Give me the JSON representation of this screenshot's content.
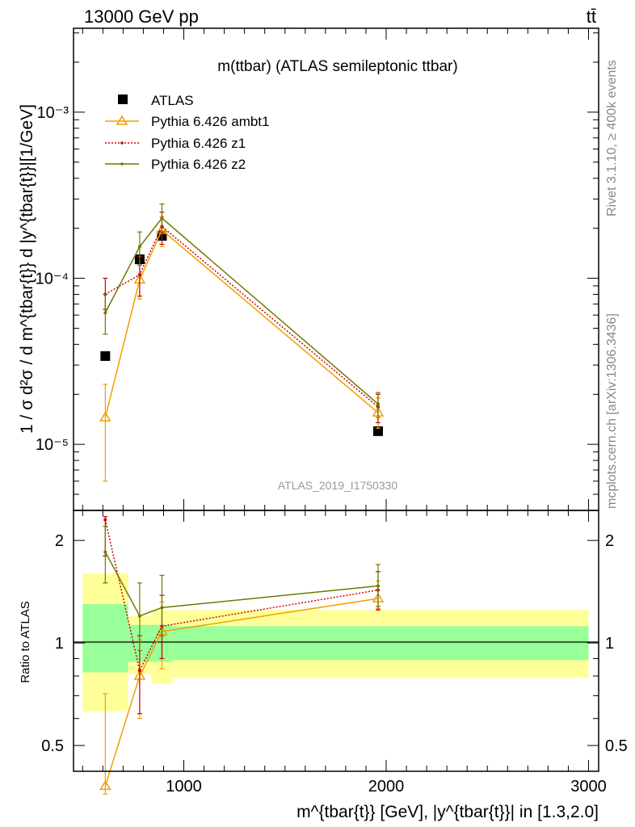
{
  "header": {
    "left": "13000 GeV pp",
    "right": "tt̄"
  },
  "side_text": {
    "rivet": "Rivet 3.1.10, ≥ 400k events",
    "mcplots": "mcplots.cern.ch [arXiv:1306.3436]"
  },
  "watermark": "ATLAS_2019_I1750330",
  "chart_data": [
    {
      "panel": "main",
      "type": "line",
      "title": "m(ttbar) (ATLAS semileptonic ttbar)",
      "xlabel": "m^{tbar{t}} [GeV], |y^{tbar{t}}| in [1.3,2.0]",
      "ylabel": "1 / σ d²σ / d m^{tbar{t}} d |y^{tbar{t}}|[1/GeV]",
      "xlim": [
        455,
        3050
      ],
      "ylim": [
        4e-06,
        0.0032
      ],
      "yscale": "log",
      "yticks": [
        {
          "v": 1e-05,
          "label": "10⁻⁵"
        },
        {
          "v": 0.0001,
          "label": "10⁻⁴"
        },
        {
          "v": 0.001,
          "label": "10⁻³"
        }
      ],
      "legend": [
        "ATLAS",
        "Pythia 6.426 ambt1",
        "Pythia 6.426 z1",
        "Pythia 6.426 z2"
      ],
      "series": [
        {
          "name": "ATLAS",
          "x": [
            612,
            782,
            892,
            1960
          ],
          "values": [
            3.4e-05,
            0.00013,
            0.00018,
            1.2e-05
          ]
        },
        {
          "name": "Pythia 6.426 ambt1",
          "x": [
            612,
            782,
            892,
            1960
          ],
          "values": [
            1.45e-05,
            9.8e-05,
            0.000195,
            1.55e-05
          ],
          "err_lo": [
            6e-06,
            7.5e-05,
            0.000155,
            1.25e-05
          ],
          "err_hi": [
            2.3e-05,
            0.00012,
            0.000235,
            1.9e-05
          ]
        },
        {
          "name": "Pythia 6.426 z1",
          "x": [
            612,
            782,
            892,
            1960
          ],
          "values": [
            8e-05,
            0.000105,
            0.000205,
            1.68e-05
          ],
          "err_lo": [
            6.5e-05,
            7.8e-05,
            0.00016,
            1.35e-05
          ],
          "err_hi": [
            0.0001,
            0.000135,
            0.00025,
            2e-05
          ]
        },
        {
          "name": "Pythia 6.426 z2",
          "x": [
            612,
            782,
            892,
            1960
          ],
          "values": [
            6.2e-05,
            0.000155,
            0.00023,
            1.75e-05
          ],
          "err_lo": [
            4.6e-05,
            0.00012,
            0.00019,
            1.45e-05
          ],
          "err_hi": [
            8e-05,
            0.00019,
            0.00028,
            2.05e-05
          ]
        }
      ]
    },
    {
      "panel": "ratio",
      "type": "line",
      "ylabel": "Ratio to ATLAS",
      "xlim": [
        455,
        3050
      ],
      "ylim": [
        0.42,
        2.45
      ],
      "yscale": "log",
      "yticks": [
        {
          "v": 0.5,
          "label": "0.5"
        },
        {
          "v": 1,
          "label": "1"
        },
        {
          "v": 2,
          "label": "2"
        }
      ],
      "xticks": [
        {
          "v": 1000,
          "label": "1000"
        },
        {
          "v": 2000,
          "label": "2000"
        },
        {
          "v": 3000,
          "label": "3000"
        }
      ],
      "bands": [
        {
          "x0": 500,
          "x1": 725,
          "inner": [
            0.82,
            1.3
          ],
          "outer": [
            0.63,
            1.6
          ]
        },
        {
          "x0": 725,
          "x1": 840,
          "inner": [
            0.88,
            1.13
          ],
          "outer": [
            0.81,
            1.2
          ]
        },
        {
          "x0": 840,
          "x1": 945,
          "inner": [
            0.88,
            1.13
          ],
          "outer": [
            0.76,
            1.25
          ]
        },
        {
          "x0": 945,
          "x1": 3000,
          "inner": [
            0.89,
            1.12
          ],
          "outer": [
            0.79,
            1.25
          ]
        }
      ],
      "series": [
        {
          "name": "Pythia 6.426 ambt1",
          "x": [
            612,
            782,
            892,
            1960
          ],
          "values": [
            0.38,
            0.8,
            1.08,
            1.35
          ],
          "err_lo": [
            0.36,
            0.6,
            0.84,
            1.26
          ],
          "err_hi": [
            0.71,
            1.02,
            1.32,
            1.52
          ]
        },
        {
          "name": "Pythia 6.426 z1",
          "x": [
            612,
            782,
            892,
            1960
          ],
          "values": [
            2.3,
            0.83,
            1.12,
            1.43
          ],
          "err_lo": [
            1.8,
            0.62,
            0.9,
            1.25
          ],
          "err_hi": [
            2.35,
            1.05,
            1.38,
            1.62
          ]
        },
        {
          "name": "Pythia 6.426 z2",
          "x": [
            612,
            782,
            892,
            1960
          ],
          "values": [
            1.85,
            1.2,
            1.27,
            1.47
          ],
          "err_lo": [
            1.5,
            0.95,
            1.05,
            1.28
          ],
          "err_hi": [
            2.2,
            1.5,
            1.58,
            1.7
          ]
        }
      ]
    }
  ],
  "styles": {
    "atlas": "#000000",
    "ambt1": "#f0a000",
    "z1": "#cc0000",
    "z2": "#6e7a00",
    "band_inner": "#99ff99",
    "band_outer": "#ffff99"
  }
}
